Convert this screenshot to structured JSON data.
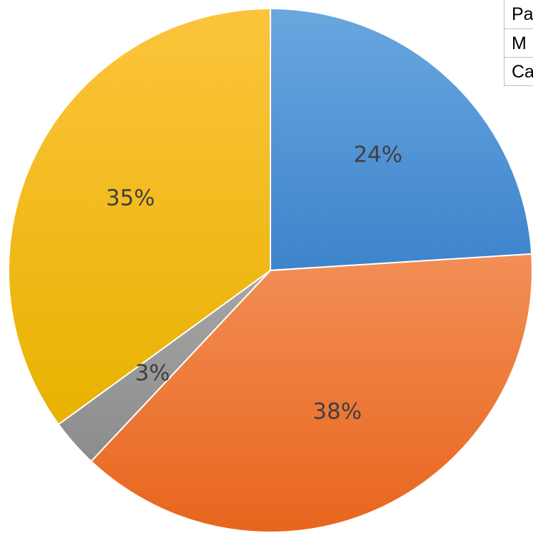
{
  "chart_data": {
    "type": "pie",
    "slices": [
      {
        "label": "24%",
        "value": 24,
        "color_top": "#69a7de",
        "color_bottom": "#3d84cc"
      },
      {
        "label": "38%",
        "value": 38,
        "color_top": "#f28f57",
        "color_bottom": "#e8651c"
      },
      {
        "label": "3%",
        "value": 3,
        "color_top": "#a6a6a6",
        "color_bottom": "#8c8c8c"
      },
      {
        "label": "35%",
        "value": 35,
        "color_top": "#fcc43c",
        "color_bottom": "#e8b200"
      }
    ],
    "start_angle_deg": 0,
    "direction": "clockwise",
    "data_labels_shown": true,
    "legend_shown": false
  },
  "table": {
    "rows": [
      "Pa",
      "M",
      "Ca"
    ]
  }
}
